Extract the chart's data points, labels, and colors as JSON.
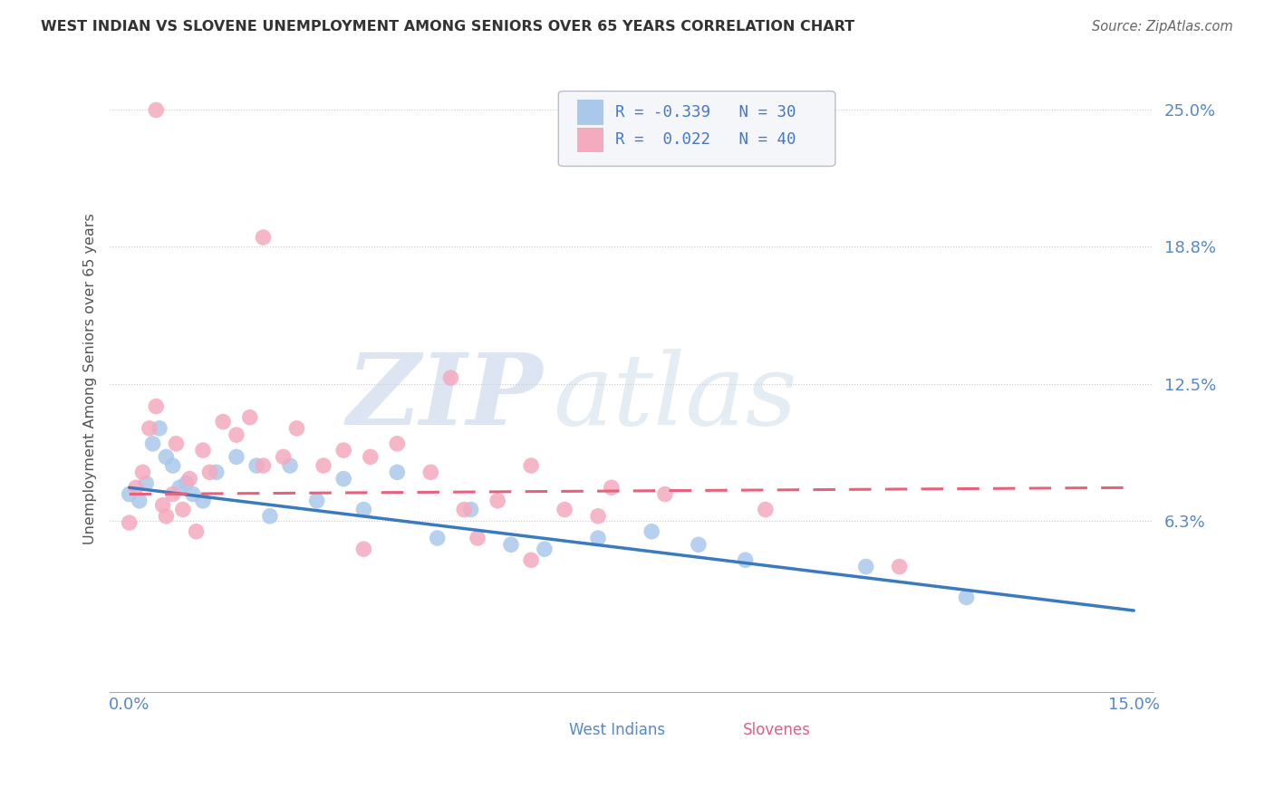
{
  "title": "WEST INDIAN VS SLOVENE UNEMPLOYMENT AMONG SENIORS OVER 65 YEARS CORRELATION CHART",
  "source": "Source: ZipAtlas.com",
  "xlim": [
    -0.3,
    15.3
  ],
  "ylim": [
    -1.5,
    27.0
  ],
  "ytick_vals": [
    6.3,
    12.5,
    18.8,
    25.0
  ],
  "xtick_vals": [
    0.0,
    15.0
  ],
  "west_indian_color": "#aac8ea",
  "slovene_color": "#f4aabf",
  "west_indian_line_color": "#3a7abf",
  "slovene_line_color": "#e8607a",
  "R_west": -0.339,
  "N_west": 30,
  "R_slovene": 0.022,
  "N_slovene": 40,
  "west_indian_x": [
    0.0,
    0.15,
    0.25,
    0.35,
    0.45,
    0.55,
    0.65,
    0.75,
    0.85,
    0.95,
    1.1,
    1.3,
    1.6,
    1.9,
    2.1,
    2.4,
    2.8,
    3.2,
    3.5,
    4.0,
    4.6,
    5.1,
    5.7,
    6.2,
    7.0,
    7.8,
    8.5,
    9.2,
    11.0,
    12.5
  ],
  "west_indian_y": [
    7.5,
    7.2,
    8.0,
    9.8,
    10.5,
    9.2,
    8.8,
    7.8,
    8.0,
    7.5,
    7.2,
    8.5,
    9.2,
    8.8,
    6.5,
    8.8,
    7.2,
    8.2,
    6.8,
    8.5,
    5.5,
    6.8,
    5.2,
    5.0,
    5.5,
    5.8,
    5.2,
    4.5,
    4.2,
    2.8
  ],
  "slovene_x": [
    0.0,
    0.1,
    0.2,
    0.3,
    0.4,
    0.5,
    0.55,
    0.65,
    0.7,
    0.8,
    0.9,
    1.0,
    1.1,
    1.2,
    1.4,
    1.6,
    1.8,
    2.0,
    2.3,
    2.5,
    2.9,
    3.2,
    3.6,
    4.0,
    4.5,
    5.0,
    5.5,
    6.0,
    6.5,
    7.2,
    8.0,
    9.5,
    11.5,
    0.4,
    2.0,
    4.8,
    5.2,
    7.0,
    3.5,
    6.0
  ],
  "slovene_y": [
    6.2,
    7.8,
    8.5,
    10.5,
    11.5,
    7.0,
    6.5,
    7.5,
    9.8,
    6.8,
    8.2,
    5.8,
    9.5,
    8.5,
    10.8,
    10.2,
    11.0,
    8.8,
    9.2,
    10.5,
    8.8,
    9.5,
    9.2,
    9.8,
    8.5,
    6.8,
    7.2,
    8.8,
    6.8,
    7.8,
    7.5,
    6.8,
    4.2,
    25.0,
    19.2,
    12.8,
    5.5,
    6.5,
    5.0,
    4.5
  ],
  "watermark_zip": "ZIP",
  "watermark_atlas": "atlas",
  "background_color": "#ffffff",
  "grid_color": "#c8c8c8"
}
